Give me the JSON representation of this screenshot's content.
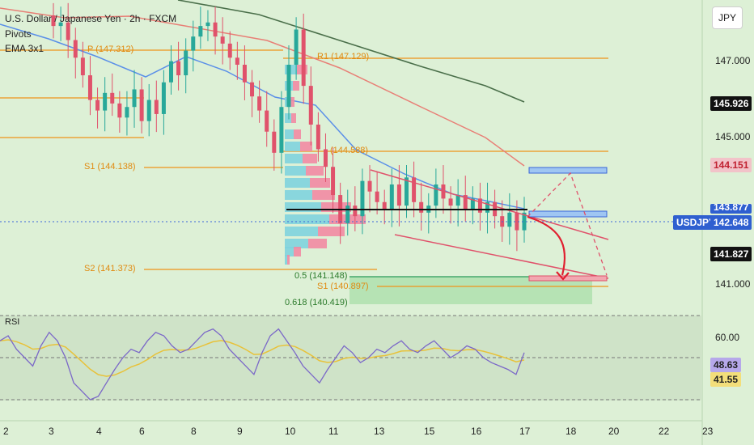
{
  "legend": {
    "title": "U.S. Dollar / Japanese Yen · 2h · FXCM",
    "pivots": "Pivots",
    "ema": "EMA 3x1"
  },
  "currency_button": "JPY",
  "rsi_title": "RSI",
  "badges": {
    "b145926": "145.926",
    "b144151": "144.151",
    "b143877": "143.877",
    "symbol": "USDJPY",
    "price": "142.648",
    "b141827": "141.827",
    "rsi1": "48.63",
    "rsi2": "41.55"
  },
  "pivot_labels": {
    "p": "P (147.312)",
    "r1": "R1 (147.129)",
    "s1a": "S1 (144.138)",
    "mid": "(144.588)",
    "s2": "S2 (141.373)",
    "s1b": "S1 (140.897)"
  },
  "fib_labels": {
    "f05": "0.5 (141.148)",
    "f0618": "0.618 (140.419)"
  },
  "colors": {
    "bull": "#28a89a",
    "bear": "#e0526b",
    "pivot": "#f0931b",
    "ema_fast": "#5a8fe8",
    "ema_mid": "#e87f76",
    "ema_slow": "#4a6f4a",
    "rsi": "#7b68c8",
    "rsi_ma": "#e8c23a"
  },
  "chart_data": {
    "type": "candlestick",
    "title": "U.S. Dollar / Japanese Yen · 2h · FXCM",
    "y_ticks": [
      "147.000",
      "145.000",
      "141.000"
    ],
    "y_range": [
      140.419,
      148.5
    ],
    "x_ticks": [
      "2",
      "3",
      "4",
      "6",
      "8",
      "9",
      "10",
      "11",
      "13",
      "15",
      "16",
      "17",
      "18",
      "20",
      "22",
      "23"
    ],
    "close_path": [
      147.9,
      148.0,
      147.5,
      147.0,
      146.5,
      145.8,
      145.5,
      146.0,
      145.7,
      145.3,
      145.6,
      146.1,
      145.2,
      145.8,
      145.4,
      146.3,
      146.9,
      146.5,
      147.2,
      147.6,
      147.9,
      148.0,
      147.6,
      147.4,
      147.0,
      146.8,
      146.3,
      145.9,
      145.5,
      144.9,
      144.3,
      145.6,
      146.8,
      147.8,
      146.2,
      145.1,
      144.4,
      143.9,
      143.1,
      142.3,
      142.8,
      142.5,
      143.5,
      143.2,
      142.9,
      142.7,
      143.4,
      142.8,
      143.6,
      142.9,
      142.6,
      142.8,
      143.4,
      143.0,
      142.8,
      143.1,
      142.7,
      143.0,
      142.6,
      142.9,
      142.5,
      142.2,
      142.6,
      142.1,
      142.6
    ],
    "pivot_levels": {
      "P": 147.312,
      "R1": 147.129,
      "S1": 144.138,
      "S2": 141.373,
      "S1_next": 140.897,
      "level": 144.588
    },
    "fib_levels": {
      "0.5": 141.148,
      "0.618": 140.419
    },
    "rsi": {
      "y_ticks": [
        "60.00"
      ],
      "last": 48.63,
      "ma_last": 41.55,
      "values": [
        55,
        58,
        50,
        45,
        40,
        52,
        60,
        55,
        45,
        30,
        25,
        20,
        22,
        30,
        38,
        45,
        50,
        48,
        55,
        60,
        58,
        52,
        48,
        50,
        55,
        60,
        62,
        58,
        50,
        45,
        40,
        35,
        48,
        58,
        62,
        55,
        48,
        40,
        35,
        30,
        38,
        45,
        52,
        48,
        42,
        45,
        50,
        48,
        52,
        55,
        50,
        48,
        52,
        55,
        50,
        45,
        48,
        52,
        50,
        45,
        42,
        40,
        38,
        35,
        48
      ]
    }
  }
}
